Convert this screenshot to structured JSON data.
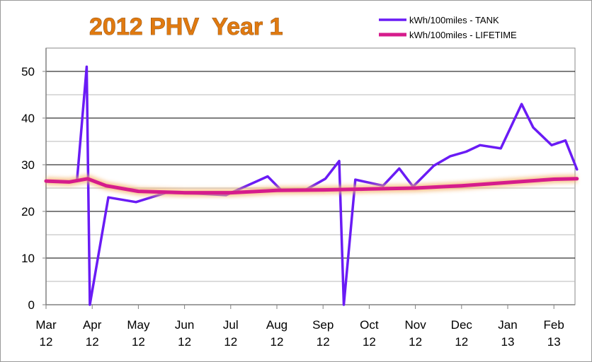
{
  "chart_data": {
    "type": "line",
    "title": "2012 PHV  Year 1",
    "xlabel": "",
    "ylabel": "",
    "ylim": [
      0,
      55
    ],
    "y_ticks": [
      0,
      10,
      20,
      30,
      40,
      50
    ],
    "x_ticks": [
      {
        "line1": "Mar",
        "line2": "12",
        "x": 0
      },
      {
        "line1": "Apr",
        "line2": "12",
        "x": 1
      },
      {
        "line1": "May",
        "line2": "12",
        "x": 2
      },
      {
        "line1": "Jun",
        "line2": "12",
        "x": 3
      },
      {
        "line1": "Jul",
        "line2": "12",
        "x": 4
      },
      {
        "line1": "Aug",
        "line2": "12",
        "x": 5
      },
      {
        "line1": "Sep",
        "line2": "12",
        "x": 6
      },
      {
        "line1": "Oct",
        "line2": "12",
        "x": 7
      },
      {
        "line1": "Nov",
        "line2": "12",
        "x": 8
      },
      {
        "line1": "Dec",
        "line2": "12",
        "x": 9
      },
      {
        "line1": "Jan",
        "line2": "13",
        "x": 10
      },
      {
        "line1": "Feb",
        "line2": "13",
        "x": 11
      }
    ],
    "xlim": [
      0,
      11.5
    ],
    "grid": true,
    "legend_position": "top-right",
    "series": [
      {
        "name": "kWh/100miles - TANK",
        "color": "#6a1bf5",
        "points": [
          [
            0.0,
            26.5
          ],
          [
            0.33,
            26.3
          ],
          [
            0.67,
            26.5
          ],
          [
            0.88,
            51.0
          ],
          [
            0.95,
            0.0
          ],
          [
            1.35,
            23.0
          ],
          [
            1.95,
            22.0
          ],
          [
            2.6,
            24.0
          ],
          [
            3.3,
            23.8
          ],
          [
            3.9,
            23.5
          ],
          [
            4.8,
            27.5
          ],
          [
            5.1,
            24.5
          ],
          [
            5.6,
            24.5
          ],
          [
            6.05,
            27.0
          ],
          [
            6.35,
            30.8
          ],
          [
            6.45,
            0.0
          ],
          [
            6.7,
            26.8
          ],
          [
            7.3,
            25.5
          ],
          [
            7.65,
            29.2
          ],
          [
            7.95,
            25.3
          ],
          [
            8.4,
            29.8
          ],
          [
            8.75,
            31.8
          ],
          [
            9.1,
            32.8
          ],
          [
            9.4,
            34.2
          ],
          [
            9.85,
            33.5
          ],
          [
            10.3,
            43.0
          ],
          [
            10.55,
            38.0
          ],
          [
            10.95,
            34.2
          ],
          [
            11.25,
            35.2
          ],
          [
            11.5,
            29.0
          ]
        ]
      },
      {
        "name": "kWh/100miles - LIFETIME",
        "color": "#d61c8c",
        "points": [
          [
            0.0,
            26.5
          ],
          [
            0.5,
            26.3
          ],
          [
            0.9,
            27.0
          ],
          [
            1.3,
            25.5
          ],
          [
            2.0,
            24.3
          ],
          [
            3.0,
            24.0
          ],
          [
            4.0,
            24.0
          ],
          [
            5.0,
            24.5
          ],
          [
            6.0,
            24.6
          ],
          [
            7.0,
            24.8
          ],
          [
            8.0,
            25.0
          ],
          [
            9.0,
            25.5
          ],
          [
            10.0,
            26.2
          ],
          [
            11.0,
            26.9
          ],
          [
            11.5,
            27.0
          ]
        ]
      }
    ]
  }
}
